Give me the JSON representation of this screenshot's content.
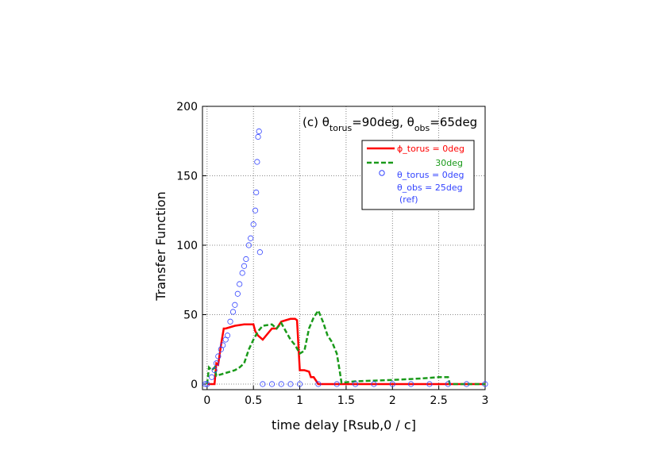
{
  "chart_data": {
    "type": "line",
    "annotation": [
      "(c) θ",
      "torus",
      "=90deg, θ",
      "obs",
      "=65deg"
    ],
    "xlabel": "time delay [Rsub,0 / c]",
    "ylabel": "Transfer Function",
    "xlim": [
      -0.05,
      3
    ],
    "ylim": [
      -4,
      200
    ],
    "xticks": [
      0,
      0.5,
      1,
      1.5,
      2,
      2.5,
      3
    ],
    "yticks": [
      0,
      50,
      100,
      150,
      200
    ],
    "grid": true,
    "series": [
      {
        "name": "ϕ_torus = 0deg",
        "color": "#ff0000",
        "style": "solid",
        "x": [
          0,
          0.05,
          0.08,
          0.1,
          0.12,
          0.15,
          0.18,
          0.2,
          0.3,
          0.4,
          0.5,
          0.52,
          0.55,
          0.6,
          0.7,
          0.75,
          0.8,
          0.85,
          0.9,
          0.95,
          0.97,
          1.0,
          1.05,
          1.1,
          1.12,
          1.15,
          1.2,
          1.5,
          2,
          2.5,
          3
        ],
        "values": [
          0,
          0,
          0,
          15,
          14,
          28,
          40,
          40,
          42,
          43,
          43,
          38,
          35,
          32,
          40,
          40,
          45,
          46,
          47,
          47,
          46,
          10,
          10,
          9,
          5,
          5,
          0,
          0,
          0,
          0,
          0
        ]
      },
      {
        "name": "30deg",
        "color": "#1a9a1a",
        "style": "dashed",
        "x": [
          0,
          0.02,
          0.05,
          0.08,
          0.1,
          0.15,
          0.2,
          0.3,
          0.35,
          0.4,
          0.45,
          0.5,
          0.55,
          0.6,
          0.7,
          0.75,
          0.8,
          0.85,
          0.9,
          0.95,
          1.0,
          1.05,
          1.1,
          1.15,
          1.2,
          1.25,
          1.3,
          1.35,
          1.4,
          1.43,
          1.45,
          1.6,
          2.0,
          2.3,
          2.5,
          2.6,
          2.62,
          3
        ],
        "values": [
          0,
          12,
          10,
          12,
          6,
          7,
          8,
          10,
          12,
          15,
          25,
          32,
          38,
          42,
          43,
          40,
          44,
          38,
          32,
          28,
          22,
          24,
          40,
          48,
          53,
          45,
          35,
          30,
          22,
          10,
          1,
          2,
          3,
          4,
          5,
          5,
          0,
          0
        ]
      },
      {
        "name": "θ_torus = 0deg",
        "name_lines": [
          "θ_obs = 25deg",
          "(ref)"
        ],
        "color": "#3344ff",
        "style": "circle",
        "x": [
          -0.02,
          0,
          0.05,
          0.08,
          0.1,
          0.12,
          0.15,
          0.17,
          0.2,
          0.22,
          0.25,
          0.28,
          0.3,
          0.33,
          0.35,
          0.38,
          0.4,
          0.42,
          0.45,
          0.47,
          0.5,
          0.52,
          0.53,
          0.54,
          0.55,
          0.56,
          0.57,
          0.6,
          0.7,
          0.8,
          0.9,
          1.0,
          1.2,
          1.4,
          1.6,
          1.8,
          2.0,
          2.2,
          2.4,
          2.6,
          2.8,
          3.0
        ],
        "values": [
          0,
          0,
          5,
          10,
          15,
          20,
          25,
          28,
          32,
          35,
          45,
          52,
          57,
          65,
          72,
          80,
          85,
          90,
          100,
          105,
          115,
          125,
          138,
          160,
          178,
          182,
          95,
          0,
          0,
          0,
          0,
          0,
          0,
          0,
          0,
          0,
          0,
          0,
          0,
          0,
          0,
          0
        ]
      }
    ]
  }
}
